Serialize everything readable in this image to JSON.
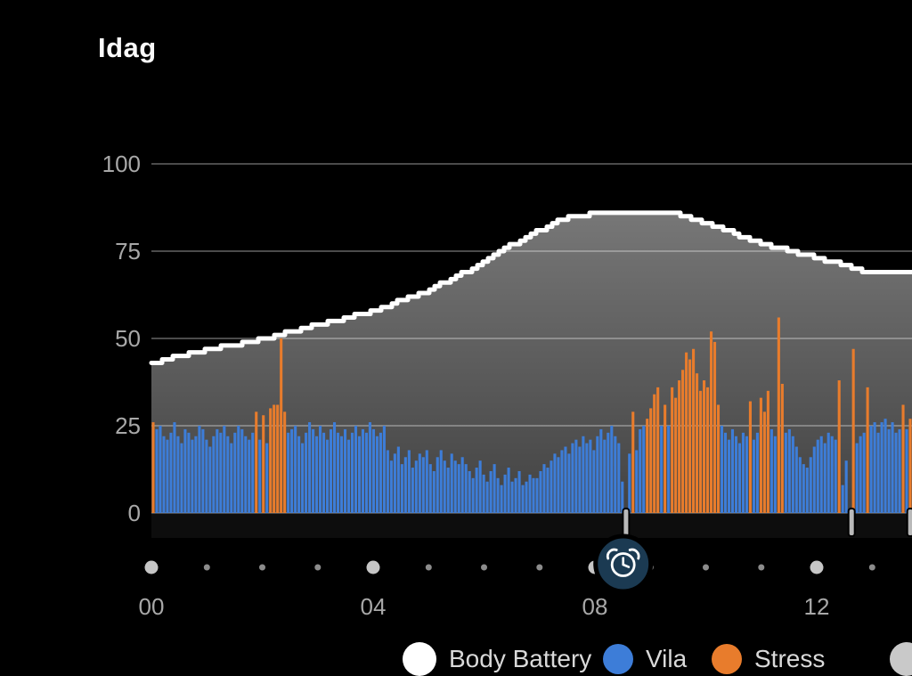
{
  "title": "Idag",
  "colors": {
    "background": "#000000",
    "title_text": "#fafafa",
    "axis_text": "#a8a8a8",
    "gridline": "#4b4b4b",
    "body_battery_line": "#ffffff",
    "rest_bar": "#3d7dd8",
    "stress_bar": "#e87c2c",
    "alarm_badge": "#1b3a52",
    "marker_gray": "#b9b9b9",
    "dot_major": "#c6c6c6",
    "dot_minor": "#8c8c8c",
    "sub_axis_band": "#0d0d0d",
    "legend_text": "#d9d9d9"
  },
  "chart_data": {
    "type": "bar+area-line",
    "title": "Idag",
    "xlabel": "",
    "ylabel": "",
    "ylim": [
      0,
      100
    ],
    "yticks": [
      {
        "value": 0,
        "label": "0"
      },
      {
        "value": 25,
        "label": "25"
      },
      {
        "value": 50,
        "label": "50"
      },
      {
        "value": 75,
        "label": "75"
      },
      {
        "value": 100,
        "label": "100"
      }
    ],
    "xticks": [
      {
        "hour": 0,
        "label": "00"
      },
      {
        "hour": 4,
        "label": "04"
      },
      {
        "hour": 8,
        "label": "08"
      },
      {
        "hour": 12,
        "label": "12"
      }
    ],
    "dot_hours": [
      0,
      1,
      2,
      3,
      4,
      5,
      6,
      7,
      8,
      9,
      10,
      11,
      12,
      13
    ],
    "x_end_hour": 13.72,
    "body_battery": {
      "name": "Body Battery",
      "color": "#ffffff",
      "points": [
        [
          0,
          43
        ],
        [
          0.5,
          45
        ],
        [
          1,
          47
        ],
        [
          1.5,
          48
        ],
        [
          2,
          50
        ],
        [
          2.5,
          52
        ],
        [
          3,
          54
        ],
        [
          3.5,
          56
        ],
        [
          4,
          58
        ],
        [
          4.5,
          61
        ],
        [
          5,
          64
        ],
        [
          5.5,
          68
        ],
        [
          6,
          72
        ],
        [
          6.5,
          77
        ],
        [
          7,
          81
        ],
        [
          7.3,
          84
        ],
        [
          8,
          86
        ],
        [
          9.3,
          86
        ],
        [
          9.6,
          85
        ],
        [
          10,
          83
        ],
        [
          10.5,
          80
        ],
        [
          11,
          77
        ],
        [
          11.5,
          75
        ],
        [
          12,
          73
        ],
        [
          12.5,
          71
        ],
        [
          12.9,
          69
        ],
        [
          13.72,
          69
        ]
      ]
    },
    "bars": {
      "interval_minutes": 3.85,
      "start_hour": 0,
      "rest_name": "Vila",
      "stress_name": "Stress",
      "data": [
        [
          26,
          "s"
        ],
        [
          24,
          "r"
        ],
        [
          25,
          "r"
        ],
        [
          22,
          "r"
        ],
        [
          21,
          "r"
        ],
        [
          23,
          "r"
        ],
        [
          26,
          "r"
        ],
        [
          22,
          "r"
        ],
        [
          20,
          "r"
        ],
        [
          24,
          "r"
        ],
        [
          23,
          "r"
        ],
        [
          21,
          "r"
        ],
        [
          22,
          "r"
        ],
        [
          25,
          "r"
        ],
        [
          24,
          "r"
        ],
        [
          21,
          "r"
        ],
        [
          19,
          "r"
        ],
        [
          22,
          "r"
        ],
        [
          24,
          "r"
        ],
        [
          23,
          "r"
        ],
        [
          25,
          "r"
        ],
        [
          22,
          "r"
        ],
        [
          20,
          "r"
        ],
        [
          23,
          "r"
        ],
        [
          25,
          "r"
        ],
        [
          24,
          "r"
        ],
        [
          22,
          "r"
        ],
        [
          21,
          "r"
        ],
        [
          23,
          "r"
        ],
        [
          29,
          "s"
        ],
        [
          21,
          "r"
        ],
        [
          28,
          "s"
        ],
        [
          20,
          "r"
        ],
        [
          30,
          "s"
        ],
        [
          31,
          "s"
        ],
        [
          31,
          "s"
        ],
        [
          50,
          "s"
        ],
        [
          29,
          "s"
        ],
        [
          23,
          "r"
        ],
        [
          24,
          "r"
        ],
        [
          25,
          "r"
        ],
        [
          22,
          "r"
        ],
        [
          20,
          "r"
        ],
        [
          23,
          "r"
        ],
        [
          26,
          "r"
        ],
        [
          24,
          "r"
        ],
        [
          22,
          "r"
        ],
        [
          25,
          "r"
        ],
        [
          23,
          "r"
        ],
        [
          21,
          "r"
        ],
        [
          24,
          "r"
        ],
        [
          26,
          "r"
        ],
        [
          23,
          "r"
        ],
        [
          22,
          "r"
        ],
        [
          24,
          "r"
        ],
        [
          21,
          "r"
        ],
        [
          23,
          "r"
        ],
        [
          25,
          "r"
        ],
        [
          22,
          "r"
        ],
        [
          24,
          "r"
        ],
        [
          23,
          "r"
        ],
        [
          26,
          "r"
        ],
        [
          24,
          "r"
        ],
        [
          22,
          "r"
        ],
        [
          23,
          "r"
        ],
        [
          25,
          "r"
        ],
        [
          18,
          "r"
        ],
        [
          15,
          "r"
        ],
        [
          17,
          "r"
        ],
        [
          19,
          "r"
        ],
        [
          14,
          "r"
        ],
        [
          16,
          "r"
        ],
        [
          18,
          "r"
        ],
        [
          13,
          "r"
        ],
        [
          15,
          "r"
        ],
        [
          17,
          "r"
        ],
        [
          16,
          "r"
        ],
        [
          18,
          "r"
        ],
        [
          14,
          "r"
        ],
        [
          12,
          "r"
        ],
        [
          16,
          "r"
        ],
        [
          18,
          "r"
        ],
        [
          15,
          "r"
        ],
        [
          13,
          "r"
        ],
        [
          17,
          "r"
        ],
        [
          15,
          "r"
        ],
        [
          14,
          "r"
        ],
        [
          16,
          "r"
        ],
        [
          14,
          "r"
        ],
        [
          12,
          "r"
        ],
        [
          10,
          "r"
        ],
        [
          13,
          "r"
        ],
        [
          15,
          "r"
        ],
        [
          11,
          "r"
        ],
        [
          9,
          "r"
        ],
        [
          12,
          "r"
        ],
        [
          14,
          "r"
        ],
        [
          10,
          "r"
        ],
        [
          8,
          "r"
        ],
        [
          11,
          "r"
        ],
        [
          13,
          "r"
        ],
        [
          9,
          "r"
        ],
        [
          10,
          "r"
        ],
        [
          12,
          "r"
        ],
        [
          8,
          "r"
        ],
        [
          9,
          "r"
        ],
        [
          11,
          "r"
        ],
        [
          10,
          "r"
        ],
        [
          10,
          "r"
        ],
        [
          12,
          "r"
        ],
        [
          14,
          "r"
        ],
        [
          13,
          "r"
        ],
        [
          15,
          "r"
        ],
        [
          17,
          "r"
        ],
        [
          16,
          "r"
        ],
        [
          18,
          "r"
        ],
        [
          19,
          "r"
        ],
        [
          17,
          "r"
        ],
        [
          20,
          "r"
        ],
        [
          21,
          "r"
        ],
        [
          19,
          "r"
        ],
        [
          22,
          "r"
        ],
        [
          20,
          "r"
        ],
        [
          21,
          "r"
        ],
        [
          18,
          "r"
        ],
        [
          22,
          "r"
        ],
        [
          24,
          "r"
        ],
        [
          21,
          "r"
        ],
        [
          23,
          "r"
        ],
        [
          25,
          "r"
        ],
        [
          22,
          "r"
        ],
        [
          20,
          "r"
        ],
        [
          9,
          "r"
        ],
        [
          0,
          "r"
        ],
        [
          17,
          "r"
        ],
        [
          29,
          "s"
        ],
        [
          18,
          "r"
        ],
        [
          24,
          "r"
        ],
        [
          25,
          "r"
        ],
        [
          27,
          "s"
        ],
        [
          30,
          "s"
        ],
        [
          34,
          "s"
        ],
        [
          36,
          "s"
        ],
        [
          25,
          "r"
        ],
        [
          31,
          "s"
        ],
        [
          25,
          "r"
        ],
        [
          36,
          "s"
        ],
        [
          33,
          "s"
        ],
        [
          38,
          "s"
        ],
        [
          41,
          "s"
        ],
        [
          46,
          "s"
        ],
        [
          44,
          "s"
        ],
        [
          47,
          "s"
        ],
        [
          40,
          "s"
        ],
        [
          35,
          "s"
        ],
        [
          38,
          "s"
        ],
        [
          36,
          "s"
        ],
        [
          52,
          "s"
        ],
        [
          49,
          "s"
        ],
        [
          31,
          "s"
        ],
        [
          25,
          "r"
        ],
        [
          23,
          "r"
        ],
        [
          21,
          "r"
        ],
        [
          24,
          "r"
        ],
        [
          22,
          "r"
        ],
        [
          20,
          "r"
        ],
        [
          23,
          "r"
        ],
        [
          22,
          "r"
        ],
        [
          32,
          "s"
        ],
        [
          21,
          "r"
        ],
        [
          23,
          "r"
        ],
        [
          33,
          "s"
        ],
        [
          29,
          "s"
        ],
        [
          35,
          "s"
        ],
        [
          24,
          "r"
        ],
        [
          22,
          "r"
        ],
        [
          56,
          "s"
        ],
        [
          37,
          "s"
        ],
        [
          23,
          "r"
        ],
        [
          24,
          "r"
        ],
        [
          22,
          "r"
        ],
        [
          19,
          "r"
        ],
        [
          16,
          "r"
        ],
        [
          14,
          "r"
        ],
        [
          13,
          "r"
        ],
        [
          16,
          "r"
        ],
        [
          19,
          "r"
        ],
        [
          21,
          "r"
        ],
        [
          22,
          "r"
        ],
        [
          20,
          "r"
        ],
        [
          23,
          "r"
        ],
        [
          22,
          "r"
        ],
        [
          21,
          "r"
        ],
        [
          38,
          "s"
        ],
        [
          8,
          "r"
        ],
        [
          15,
          "r"
        ],
        [
          0,
          "r"
        ],
        [
          47,
          "s"
        ],
        [
          20,
          "r"
        ],
        [
          22,
          "r"
        ],
        [
          23,
          "r"
        ],
        [
          36,
          "s"
        ],
        [
          25,
          "r"
        ],
        [
          26,
          "r"
        ],
        [
          23,
          "r"
        ],
        [
          26,
          "r"
        ],
        [
          27,
          "r"
        ],
        [
          24,
          "r"
        ],
        [
          26,
          "r"
        ],
        [
          23,
          "r"
        ],
        [
          24,
          "r"
        ],
        [
          31,
          "s"
        ],
        [
          24,
          "r"
        ],
        [
          27,
          "s"
        ]
      ]
    },
    "alarm": {
      "hour": 8.51,
      "icon": "alarm-clock-icon"
    },
    "event_marker_hours": [
      8.56,
      12.63,
      13.69
    ]
  },
  "legend": {
    "items": [
      {
        "label": "Body Battery",
        "color": "#ffffff",
        "size": 38
      },
      {
        "label": "Vila",
        "color": "#3d7dd8",
        "size": 34
      },
      {
        "label": "Stress",
        "color": "#e87c2c",
        "size": 34
      },
      {
        "label": "",
        "color": "#c9c9c9",
        "size": 38
      }
    ]
  }
}
